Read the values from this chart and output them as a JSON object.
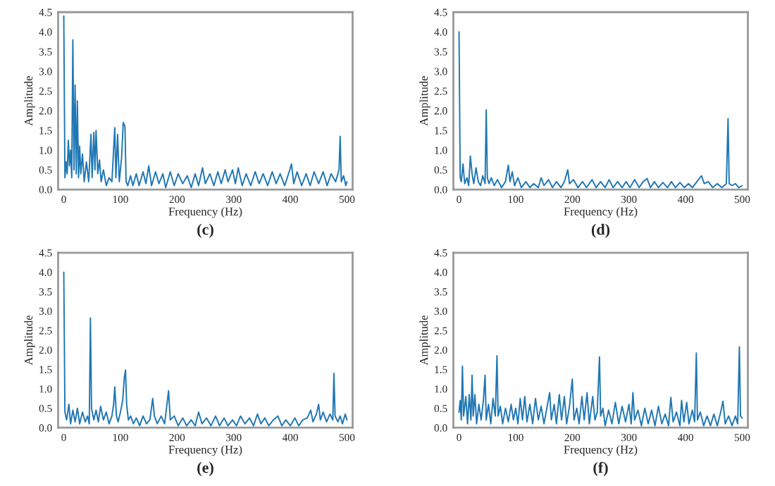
{
  "chart_data": [
    {
      "type": "line",
      "title": "(c)",
      "xlabel": "Frequency (Hz)",
      "ylabel": "Amplitude",
      "xlim": [
        -10,
        510
      ],
      "ylim": [
        0,
        4.5
      ],
      "xticks": [
        0,
        100,
        200,
        300,
        400,
        500
      ],
      "yticks": [
        {
          "value": 0,
          "label": "0.0"
        },
        0.5,
        {
          "value": 1,
          "label": "1.0"
        },
        1.5,
        {
          "value": 2,
          "label": "2.0"
        },
        2.5,
        {
          "value": 3,
          "label": "3.0"
        },
        3.5,
        {
          "value": 4,
          "label": "4.0"
        },
        4.5
      ],
      "grid": false,
      "legend": false,
      "marker": "none",
      "line_style": "solid",
      "series": [
        {
          "color": "#1f77b4",
          "x": [
            0,
            2,
            4,
            6,
            8,
            10,
            12,
            14,
            16,
            18,
            20,
            22,
            24,
            26,
            28,
            30,
            33,
            36,
            40,
            44,
            48,
            50,
            53,
            55,
            57,
            60,
            63,
            66,
            70,
            75,
            80,
            85,
            90,
            92,
            95,
            98,
            102,
            105,
            108,
            110,
            113,
            118,
            122,
            128,
            133,
            140,
            145,
            150,
            155,
            162,
            168,
            175,
            180,
            188,
            195,
            202,
            210,
            218,
            225,
            232,
            238,
            245,
            250,
            258,
            265,
            272,
            278,
            285,
            290,
            298,
            303,
            308,
            315,
            322,
            330,
            338,
            345,
            352,
            360,
            368,
            375,
            382,
            390,
            398,
            402,
            406,
            412,
            420,
            428,
            435,
            442,
            450,
            458,
            465,
            472,
            480,
            486,
            488,
            490,
            494,
            498,
            500
          ],
          "values": [
            4.4,
            0.3,
            0.7,
            0.4,
            1.25,
            0.6,
            1.0,
            0.3,
            3.8,
            0.5,
            2.65,
            0.4,
            2.25,
            0.3,
            1.1,
            0.4,
            0.9,
            0.2,
            0.7,
            0.2,
            1.4,
            0.3,
            1.45,
            0.5,
            1.5,
            0.4,
            0.75,
            0.2,
            0.5,
            0.1,
            0.3,
            0.2,
            1.57,
            0.3,
            1.4,
            0.2,
            0.8,
            1.7,
            1.6,
            0.2,
            0.1,
            0.35,
            0.1,
            0.4,
            0.1,
            0.45,
            0.15,
            0.6,
            0.1,
            0.45,
            0.15,
            0.4,
            0.05,
            0.45,
            0.1,
            0.4,
            0.15,
            0.35,
            0.05,
            0.4,
            0.1,
            0.55,
            0.15,
            0.4,
            0.1,
            0.45,
            0.15,
            0.5,
            0.2,
            0.5,
            0.15,
            0.55,
            0.1,
            0.4,
            0.1,
            0.45,
            0.15,
            0.4,
            0.1,
            0.45,
            0.15,
            0.4,
            0.1,
            0.45,
            0.65,
            0.15,
            0.45,
            0.1,
            0.4,
            0.1,
            0.45,
            0.15,
            0.45,
            0.1,
            0.4,
            0.2,
            0.5,
            1.35,
            0.2,
            0.35,
            0.1,
            0.2
          ]
        }
      ]
    },
    {
      "type": "line",
      "title": "(d)",
      "xlabel": "Frequency (Hz)",
      "ylabel": "Amplitude",
      "xlim": [
        -10,
        510
      ],
      "ylim": [
        0,
        4.5
      ],
      "xticks": [
        0,
        100,
        200,
        300,
        400,
        500
      ],
      "yticks": [
        {
          "value": 0,
          "label": "0.0"
        },
        0.5,
        {
          "value": 1,
          "label": "1.0"
        },
        1.5,
        {
          "value": 2,
          "label": "2.0"
        },
        2.5,
        {
          "value": 3,
          "label": "3.0"
        },
        3.5,
        {
          "value": 4,
          "label": "4.0"
        },
        4.5
      ],
      "grid": false,
      "legend": false,
      "marker": "none",
      "line_style": "solid",
      "series": [
        {
          "color": "#1f77b4",
          "x": [
            0,
            2,
            4,
            7,
            10,
            14,
            17,
            20,
            23,
            26,
            30,
            34,
            38,
            42,
            46,
            48,
            50,
            53,
            57,
            62,
            68,
            75,
            82,
            87,
            90,
            94,
            98,
            104,
            110,
            118,
            125,
            132,
            140,
            145,
            150,
            158,
            165,
            172,
            180,
            186,
            192,
            195,
            202,
            210,
            218,
            225,
            235,
            242,
            250,
            258,
            265,
            272,
            280,
            288,
            295,
            302,
            310,
            318,
            325,
            332,
            338,
            345,
            352,
            360,
            368,
            375,
            382,
            390,
            398,
            405,
            412,
            420,
            428,
            433,
            440,
            448,
            456,
            464,
            472,
            475,
            477,
            482,
            488,
            494,
            500
          ],
          "values": [
            4.0,
            0.3,
            0.2,
            0.65,
            0.15,
            0.3,
            0.1,
            0.85,
            0.4,
            0.15,
            0.55,
            0.2,
            0.1,
            0.35,
            0.15,
            2.02,
            0.3,
            0.15,
            0.3,
            0.1,
            0.25,
            0.05,
            0.2,
            0.62,
            0.2,
            0.45,
            0.1,
            0.3,
            0.05,
            0.2,
            0.05,
            0.15,
            0.05,
            0.3,
            0.1,
            0.25,
            0.05,
            0.2,
            0.05,
            0.2,
            0.5,
            0.15,
            0.25,
            0.05,
            0.2,
            0.05,
            0.25,
            0.05,
            0.2,
            0.05,
            0.25,
            0.05,
            0.2,
            0.05,
            0.2,
            0.05,
            0.25,
            0.05,
            0.2,
            0.28,
            0.05,
            0.2,
            0.05,
            0.18,
            0.05,
            0.2,
            0.05,
            0.18,
            0.05,
            0.15,
            0.05,
            0.2,
            0.35,
            0.15,
            0.2,
            0.05,
            0.15,
            0.05,
            0.15,
            1.8,
            0.15,
            0.1,
            0.15,
            0.05,
            0.1
          ]
        }
      ]
    },
    {
      "type": "line",
      "title": "(e)",
      "xlabel": "Frequency (Hz)",
      "ylabel": "Amplitude",
      "xlim": [
        -10,
        510
      ],
      "ylim": [
        0,
        4.5
      ],
      "xticks": [
        0,
        100,
        200,
        300,
        400,
        500
      ],
      "yticks": [
        {
          "value": 0,
          "label": "0.0"
        },
        0.5,
        {
          "value": 1,
          "label": "1.0"
        },
        1.5,
        {
          "value": 2,
          "label": "2.0"
        },
        2.5,
        {
          "value": 3,
          "label": "3.0"
        },
        3.5,
        {
          "value": 4,
          "label": "4.0"
        },
        4.5
      ],
      "grid": false,
      "legend": false,
      "marker": "none",
      "line_style": "solid",
      "series": [
        {
          "color": "#1f77b4",
          "x": [
            0,
            2,
            5,
            9,
            12,
            16,
            20,
            24,
            28,
            33,
            38,
            42,
            45,
            47,
            49,
            53,
            57,
            61,
            65,
            70,
            75,
            80,
            85,
            88,
            90,
            93,
            96,
            100,
            104,
            107,
            109,
            111,
            114,
            118,
            123,
            128,
            134,
            140,
            146,
            152,
            157,
            160,
            165,
            172,
            178,
            185,
            188,
            195,
            202,
            210,
            217,
            225,
            232,
            238,
            244,
            252,
            260,
            268,
            275,
            283,
            290,
            298,
            305,
            312,
            320,
            328,
            335,
            342,
            348,
            355,
            362,
            370,
            378,
            385,
            392,
            400,
            408,
            415,
            422,
            430,
            436,
            440,
            446,
            450,
            453,
            458,
            464,
            470,
            475,
            477,
            479,
            484,
            488,
            492,
            497,
            500
          ],
          "values": [
            4.0,
            0.4,
            0.2,
            0.6,
            0.1,
            0.45,
            0.15,
            0.5,
            0.1,
            0.4,
            0.15,
            0.3,
            0.1,
            2.82,
            0.5,
            0.2,
            0.45,
            0.15,
            0.55,
            0.2,
            0.4,
            0.1,
            0.3,
            0.6,
            1.05,
            0.3,
            0.15,
            0.4,
            0.7,
            1.3,
            1.48,
            0.6,
            0.2,
            0.3,
            0.1,
            0.25,
            0.05,
            0.3,
            0.1,
            0.2,
            0.75,
            0.3,
            0.1,
            0.3,
            0.1,
            0.95,
            0.2,
            0.3,
            0.05,
            0.25,
            0.05,
            0.2,
            0.05,
            0.4,
            0.1,
            0.25,
            0.05,
            0.3,
            0.05,
            0.25,
            0.05,
            0.2,
            0.05,
            0.3,
            0.1,
            0.25,
            0.05,
            0.35,
            0.1,
            0.25,
            0.05,
            0.2,
            0.3,
            0.05,
            0.2,
            0.05,
            0.25,
            0.05,
            0.2,
            0.25,
            0.45,
            0.15,
            0.35,
            0.6,
            0.2,
            0.4,
            0.15,
            0.35,
            0.2,
            1.4,
            0.3,
            0.15,
            0.3,
            0.1,
            0.35,
            0.2
          ]
        }
      ]
    },
    {
      "type": "line",
      "title": "(f)",
      "xlabel": "Frequency (Hz)",
      "ylabel": "Amplitude",
      "xlim": [
        -10,
        510
      ],
      "ylim": [
        0,
        4.5
      ],
      "xticks": [
        0,
        100,
        200,
        300,
        400,
        500
      ],
      "yticks": [
        {
          "value": 0,
          "label": "0.0"
        },
        0.5,
        {
          "value": 1,
          "label": "1.0"
        },
        1.5,
        {
          "value": 2,
          "label": "2.0"
        },
        2.5,
        {
          "value": 3,
          "label": "3.0"
        },
        3.5,
        {
          "value": 4,
          "label": "4.0"
        },
        4.5
      ],
      "grid": false,
      "legend": false,
      "marker": "none",
      "line_style": "solid",
      "series": [
        {
          "color": "#1f77b4",
          "x": [
            0,
            2,
            4,
            6,
            8,
            12,
            15,
            18,
            21,
            23,
            25,
            28,
            31,
            35,
            39,
            43,
            46,
            48,
            52,
            56,
            60,
            64,
            67,
            69,
            73,
            77,
            82,
            87,
            92,
            96,
            100,
            104,
            108,
            112,
            116,
            120,
            125,
            130,
            135,
            140,
            145,
            150,
            155,
            160,
            163,
            168,
            172,
            177,
            181,
            186,
            190,
            195,
            200,
            203,
            208,
            212,
            217,
            221,
            226,
            230,
            236,
            240,
            244,
            248,
            250,
            254,
            258,
            264,
            270,
            276,
            282,
            288,
            294,
            300,
            304,
            307,
            310,
            316,
            322,
            328,
            334,
            340,
            346,
            352,
            358,
            364,
            370,
            374,
            378,
            384,
            390,
            393,
            397,
            402,
            406,
            412,
            416,
            419,
            421,
            426,
            432,
            438,
            444,
            450,
            456,
            462,
            466,
            470,
            476,
            482,
            488,
            492,
            495,
            497,
            500
          ],
          "values": [
            0.4,
            0.7,
            0.2,
            1.58,
            0.3,
            0.8,
            0.1,
            0.85,
            0.2,
            1.35,
            0.3,
            0.85,
            0.1,
            0.6,
            0.2,
            0.7,
            1.35,
            0.2,
            0.6,
            0.1,
            0.75,
            0.3,
            1.85,
            0.3,
            0.55,
            0.1,
            0.5,
            0.15,
            0.6,
            0.2,
            0.5,
            0.1,
            0.75,
            0.2,
            0.8,
            0.15,
            0.6,
            0.1,
            0.75,
            0.2,
            0.55,
            0.1,
            0.5,
            0.9,
            0.2,
            0.6,
            0.1,
            0.85,
            0.2,
            0.8,
            0.1,
            0.55,
            1.25,
            0.2,
            0.5,
            0.1,
            0.8,
            0.2,
            0.9,
            0.1,
            0.8,
            0.2,
            0.4,
            1.82,
            0.3,
            0.5,
            0.05,
            0.45,
            0.1,
            0.65,
            0.1,
            0.55,
            0.15,
            0.6,
            0.1,
            0.9,
            0.2,
            0.45,
            0.05,
            0.5,
            0.1,
            0.45,
            0.05,
            0.55,
            0.1,
            0.35,
            0.05,
            0.78,
            0.15,
            0.4,
            0.05,
            0.7,
            0.15,
            0.65,
            0.1,
            0.45,
            0.15,
            1.92,
            0.2,
            0.4,
            0.05,
            0.3,
            0.05,
            0.35,
            0.05,
            0.4,
            0.68,
            0.1,
            0.3,
            0.05,
            0.3,
            0.1,
            2.08,
            0.3,
            0.25
          ]
        }
      ]
    }
  ]
}
